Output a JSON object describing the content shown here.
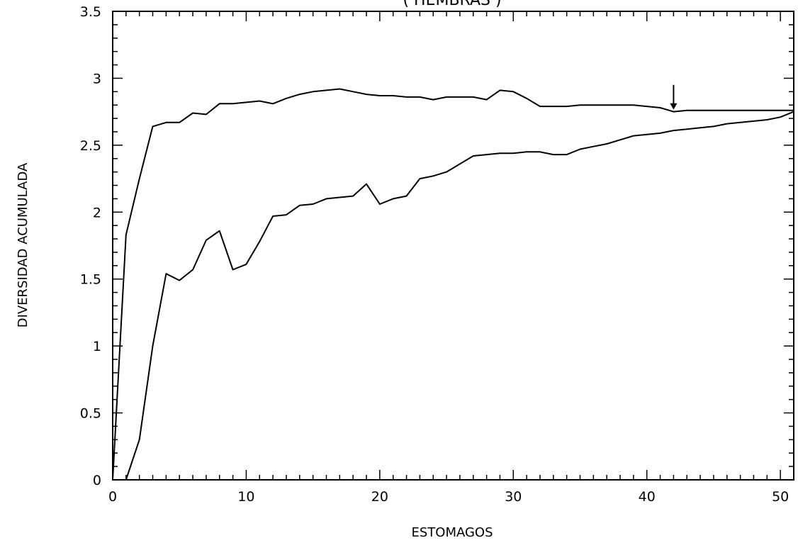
{
  "chart_data": {
    "type": "line",
    "title": "( HEMBRAS )",
    "xlabel": "ESTOMAGOS",
    "ylabel": "DIVERSIDAD ACUMULADA",
    "xlim": [
      0,
      51
    ],
    "ylim": [
      0,
      3.5
    ],
    "xticks": [
      0,
      10,
      20,
      30,
      40,
      50
    ],
    "xtick_labels": [
      "0",
      "10",
      "20",
      "30",
      "40",
      "50"
    ],
    "yticks": [
      0,
      0.5,
      1,
      1.5,
      2,
      2.5,
      3,
      3.5
    ],
    "ytick_labels": [
      "0",
      "0.5",
      "1",
      "1.5",
      "2",
      "2.5",
      "3",
      "3.5"
    ],
    "grid": false,
    "line_color": "#000000",
    "series": [
      {
        "x": [
          0,
          1,
          2,
          3,
          4,
          5,
          6,
          7,
          8,
          9,
          10,
          11,
          12,
          13,
          14,
          15,
          16,
          17,
          18,
          19,
          20,
          21,
          22,
          23,
          24,
          25,
          26,
          27,
          28,
          29,
          30,
          31,
          32,
          33,
          34,
          35,
          36,
          37,
          38,
          39,
          40,
          41,
          42,
          43,
          44,
          45,
          46,
          47,
          48,
          49,
          50,
          51
        ],
        "values": [
          0,
          1.83,
          2.25,
          2.64,
          2.67,
          2.67,
          2.74,
          2.73,
          2.81,
          2.81,
          2.82,
          2.83,
          2.81,
          2.85,
          2.88,
          2.9,
          2.91,
          2.92,
          2.9,
          2.88,
          2.87,
          2.87,
          2.86,
          2.86,
          2.84,
          2.86,
          2.86,
          2.86,
          2.84,
          2.91,
          2.9,
          2.85,
          2.79,
          2.79,
          2.79,
          2.8,
          2.8,
          2.8,
          2.8,
          2.8,
          2.79,
          2.78,
          2.75,
          2.76,
          2.76,
          2.76,
          2.76,
          2.76,
          2.76,
          2.76,
          2.76,
          2.76
        ]
      },
      {
        "x": [
          1,
          2,
          3,
          4,
          5,
          6,
          7,
          8,
          9,
          10,
          11,
          12,
          13,
          14,
          15,
          16,
          17,
          18,
          19,
          20,
          21,
          22,
          23,
          24,
          25,
          26,
          27,
          28,
          29,
          30,
          31,
          32,
          33,
          34,
          35,
          36,
          37,
          38,
          39,
          40,
          41,
          42,
          43,
          44,
          45,
          46,
          47,
          48,
          49,
          50,
          51
        ],
        "values": [
          0,
          0.3,
          1.0,
          1.54,
          1.49,
          1.57,
          1.79,
          1.86,
          1.57,
          1.61,
          1.78,
          1.97,
          1.98,
          2.05,
          2.06,
          2.1,
          2.11,
          2.12,
          2.21,
          2.06,
          2.1,
          2.12,
          2.25,
          2.27,
          2.3,
          2.36,
          2.42,
          2.43,
          2.44,
          2.44,
          2.45,
          2.45,
          2.43,
          2.43,
          2.47,
          2.49,
          2.51,
          2.54,
          2.57,
          2.58,
          2.59,
          2.61,
          2.62,
          2.63,
          2.64,
          2.66,
          2.67,
          2.68,
          2.69,
          2.71,
          2.75
        ]
      }
    ],
    "annotations": [
      {
        "type": "arrow-down",
        "x": 42,
        "y": 2.76
      }
    ]
  }
}
